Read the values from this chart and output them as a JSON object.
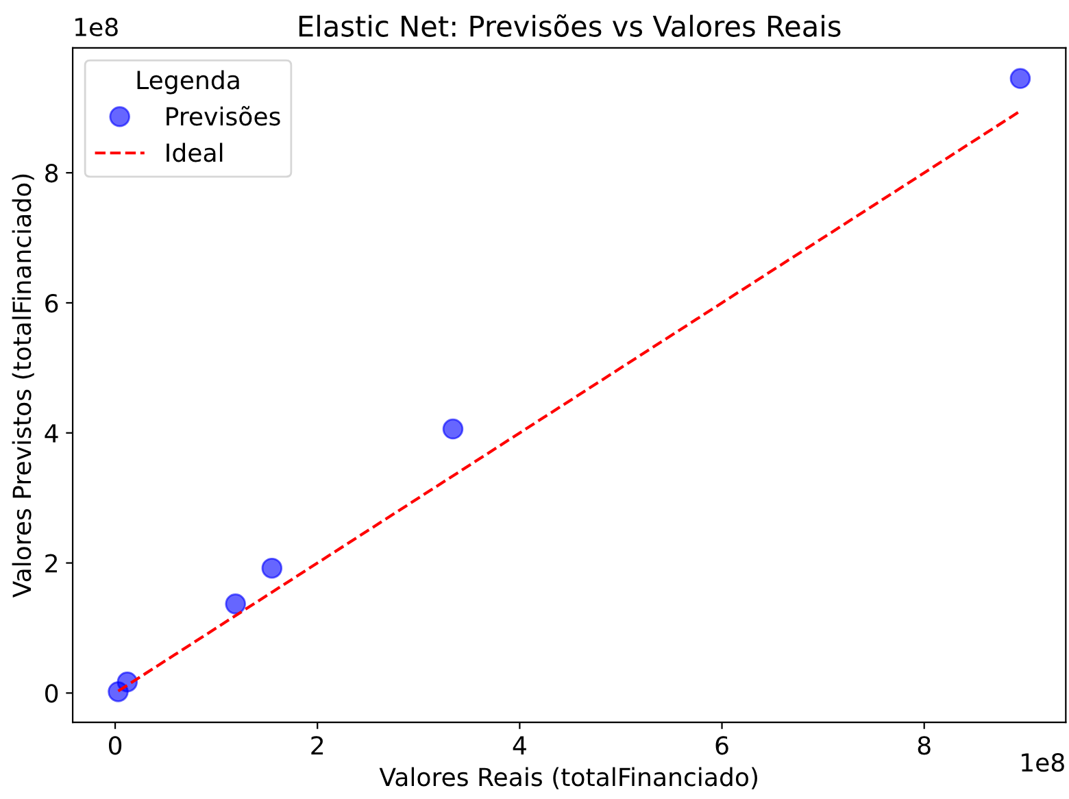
{
  "chart_data": {
    "type": "scatter",
    "title": "Elastic Net: Previsões vs Valores Reais",
    "xlabel": "Valores Reais (totalFinanciado)",
    "ylabel": "Valores Previstos (totalFinanciado)",
    "legend_title": "Legenda",
    "annotations": [
      "1e8",
      "1e8"
    ],
    "series": [
      {
        "name": "Previsões",
        "color": "#0000ff",
        "marker": "circle",
        "x": [
          0.03,
          0.12,
          1.19,
          1.55,
          3.34,
          8.95
        ],
        "values": [
          0.02,
          0.17,
          1.37,
          1.92,
          4.06,
          9.45
        ]
      },
      {
        "name": "Ideal",
        "type": "line",
        "color": "#ff0000",
        "line_style": "dashed",
        "marker": "none",
        "x": [
          0.03,
          8.95
        ],
        "values": [
          0.03,
          8.95
        ]
      }
    ],
    "xlim": [
      -0.42,
      9.4
    ],
    "ylim": [
      -0.45,
      9.92
    ],
    "xticks": [
      0,
      2,
      4,
      6,
      8
    ],
    "yticks": [
      0,
      2,
      4,
      6,
      8
    ],
    "grid": false,
    "legend": "top left"
  }
}
